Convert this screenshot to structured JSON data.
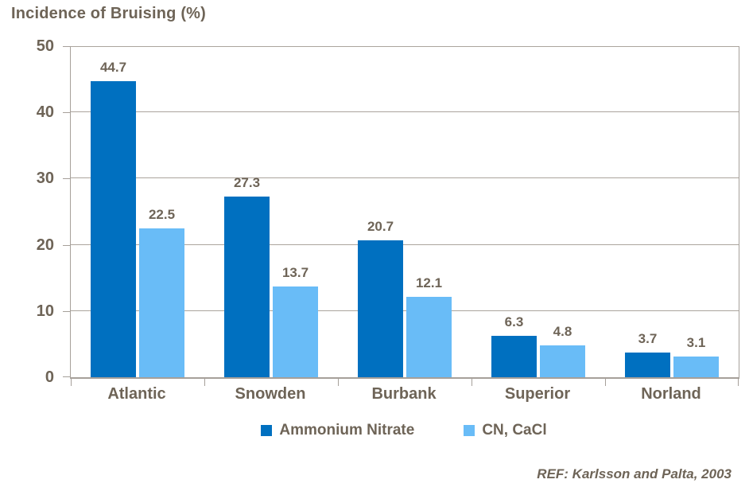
{
  "title": "Incidence of Bruising (%)",
  "reference": "REF: Karlsson and Palta, 2003",
  "palette": {
    "series_dark_blue": "#0070C0",
    "series_light_blue": "#69BCF7",
    "text_taupe": "#6E6457",
    "axis_gray": "#A6A09A",
    "grid_gray": "#ABA49D",
    "background": "#FFFFFF"
  },
  "chart_data": {
    "type": "bar",
    "title": "Incidence of Bruising (%)",
    "categories": [
      "Atlantic",
      "Snowden",
      "Burbank",
      "Superior",
      "Norland"
    ],
    "series": [
      {
        "name": "Ammonium Nitrate",
        "color": "#0070C0",
        "values": [
          44.7,
          27.3,
          20.7,
          6.3,
          3.7
        ]
      },
      {
        "name": "CN, CaCl",
        "color": "#69BCF7",
        "values": [
          22.5,
          13.7,
          12.1,
          4.8,
          3.1
        ]
      }
    ],
    "xlabel": "",
    "ylabel": "",
    "ylim": [
      0,
      50
    ],
    "ytick_step": 10,
    "yticks": [
      0,
      10,
      20,
      30,
      40,
      50
    ],
    "grid": true,
    "data_labels": true,
    "legend_position": "bottom",
    "annotation": "REF: Karlsson and Palta, 2003"
  }
}
